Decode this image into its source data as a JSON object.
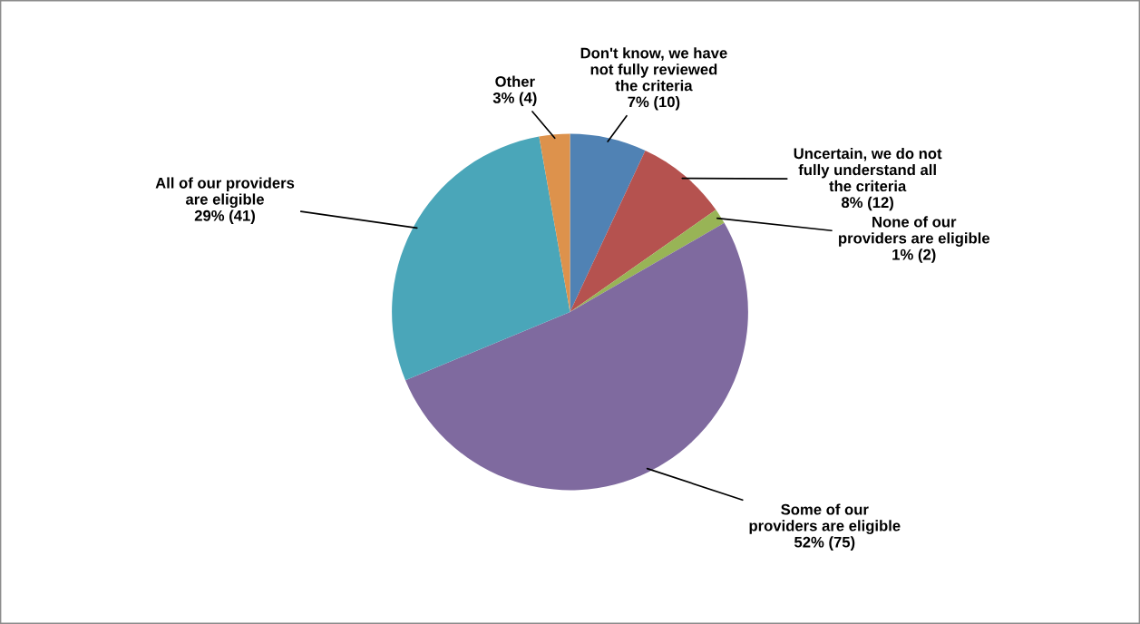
{
  "chart_data": {
    "type": "pie",
    "categories": [
      "Don't know, we have\nnot fully reviewed\nthe criteria",
      "Uncertain, we do not\nfully understand all\nthe criteria",
      "None of our\nproviders are eligible",
      "Some of our\nproviders are eligible",
      "All of our providers\nare eligible",
      "Other"
    ],
    "values": [
      10,
      12,
      2,
      75,
      41,
      4
    ],
    "value_labels": [
      "7% (10)",
      "8% (12)",
      "1% (2)",
      "52% (75)",
      "29% (41)",
      "3% (4)"
    ],
    "colors": [
      "#5082b4",
      "#b5524f",
      "#98b456",
      "#7f6a9f",
      "#4aa6b9",
      "#dd924c"
    ],
    "legend": false
  }
}
